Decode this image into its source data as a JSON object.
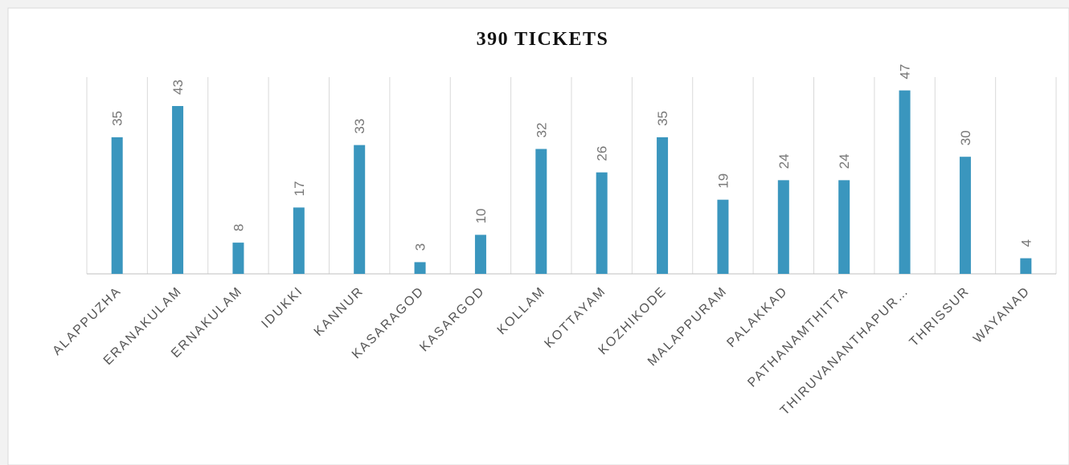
{
  "chart_data": {
    "type": "bar",
    "title": "390 TICKETS",
    "categories": [
      "ALAPPUZHA",
      "ERANAKULAM",
      "ERNAKULAM",
      "IDUKKI",
      "KANNUR",
      "KASARAGOD",
      "KASARGOD",
      "KOLLAM",
      "KOTTAYAM",
      "KOZHIKODE",
      "MALAPPURAM",
      "PALAKKAD",
      "PATHANAMTHITTA",
      "THIRUVANANTHAPUR…",
      "THRISSUR",
      "WAYANAD"
    ],
    "values": [
      35,
      43,
      8,
      17,
      33,
      3,
      10,
      32,
      26,
      35,
      19,
      24,
      24,
      47,
      30,
      4
    ],
    "color": "#3a96be",
    "ylim": [
      0,
      50
    ],
    "grid": true
  }
}
